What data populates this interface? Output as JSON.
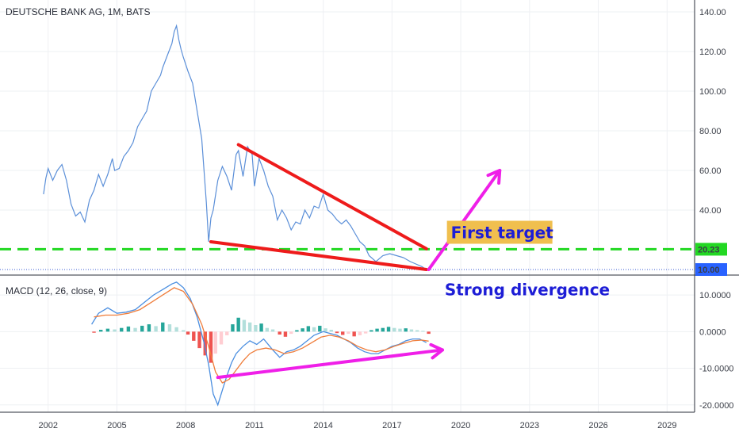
{
  "chart_data": [
    {
      "type": "line",
      "title": "DEUTSCHE BANK AG, 1M, BATS",
      "xlabel": "",
      "ylabel": "",
      "x_ticks": [
        "2002",
        "2005",
        "2008",
        "2011",
        "2014",
        "2017",
        "2020",
        "2023",
        "2026",
        "2029"
      ],
      "y_ticks": [
        "140.00",
        "120.00",
        "100.00",
        "80.00",
        "60.00",
        "40.00"
      ],
      "ylim": [
        8,
        146
      ],
      "xlim": [
        1999.9,
        2030.2
      ],
      "grid": true,
      "series": [
        {
          "color": "#5b8fd8",
          "points": [
            [
              2001.8,
              48
            ],
            [
              2001.9,
              56
            ],
            [
              2002.0,
              61
            ],
            [
              2002.2,
              55
            ],
            [
              2002.4,
              60
            ],
            [
              2002.6,
              63
            ],
            [
              2002.8,
              55
            ],
            [
              2003.0,
              43
            ],
            [
              2003.2,
              37
            ],
            [
              2003.4,
              39
            ],
            [
              2003.6,
              34
            ],
            [
              2003.8,
              45
            ],
            [
              2004.0,
              50
            ],
            [
              2004.2,
              58
            ],
            [
              2004.4,
              52
            ],
            [
              2004.6,
              58
            ],
            [
              2004.8,
              66
            ],
            [
              2004.9,
              60
            ],
            [
              2005.1,
              61
            ],
            [
              2005.3,
              67
            ],
            [
              2005.5,
              70
            ],
            [
              2005.7,
              74
            ],
            [
              2005.9,
              82
            ],
            [
              2006.1,
              86
            ],
            [
              2006.3,
              90
            ],
            [
              2006.5,
              100
            ],
            [
              2006.7,
              104
            ],
            [
              2006.9,
              108
            ],
            [
              2007.0,
              112
            ],
            [
              2007.2,
              118
            ],
            [
              2007.4,
              124
            ],
            [
              2007.5,
              130
            ],
            [
              2007.6,
              133
            ],
            [
              2007.7,
              126
            ],
            [
              2007.8,
              121
            ],
            [
              2007.9,
              117
            ],
            [
              2008.1,
              110
            ],
            [
              2008.3,
              104
            ],
            [
              2008.5,
              90
            ],
            [
              2008.7,
              76
            ],
            [
              2008.9,
              44
            ],
            [
              2009.0,
              24
            ],
            [
              2009.1,
              36
            ],
            [
              2009.2,
              40
            ],
            [
              2009.4,
              55
            ],
            [
              2009.6,
              62
            ],
            [
              2009.8,
              57
            ],
            [
              2010.0,
              50
            ],
            [
              2010.2,
              68
            ],
            [
              2010.3,
              70
            ],
            [
              2010.5,
              57
            ],
            [
              2010.7,
              72
            ],
            [
              2010.9,
              68
            ],
            [
              2011.0,
              52
            ],
            [
              2011.2,
              66
            ],
            [
              2011.4,
              60
            ],
            [
              2011.6,
              52
            ],
            [
              2011.8,
              47
            ],
            [
              2012.0,
              35
            ],
            [
              2012.2,
              40
            ],
            [
              2012.4,
              36
            ],
            [
              2012.6,
              30
            ],
            [
              2012.8,
              34
            ],
            [
              2013.0,
              33
            ],
            [
              2013.2,
              40
            ],
            [
              2013.4,
              36
            ],
            [
              2013.6,
              42
            ],
            [
              2013.8,
              41
            ],
            [
              2014.0,
              48
            ],
            [
              2014.2,
              40
            ],
            [
              2014.4,
              38
            ],
            [
              2014.6,
              35
            ],
            [
              2014.8,
              33
            ],
            [
              2015.0,
              35
            ],
            [
              2015.2,
              32
            ],
            [
              2015.4,
              28
            ],
            [
              2015.6,
              24
            ],
            [
              2015.8,
              22
            ],
            [
              2016.0,
              17
            ],
            [
              2016.3,
              14
            ],
            [
              2016.6,
              17
            ],
            [
              2016.9,
              18
            ],
            [
              2017.2,
              17
            ],
            [
              2017.5,
              16
            ],
            [
              2017.8,
              14
            ],
            [
              2018.0,
              13
            ],
            [
              2018.3,
              11.5
            ],
            [
              2018.5,
              10
            ]
          ]
        }
      ],
      "price_labels": [
        {
          "value": 20.23,
          "text": "20.23",
          "bg": "#23d823",
          "fg": "#0b3b0b"
        },
        {
          "value": 10.0,
          "text": "10.00",
          "bg": "#2962ff",
          "fg": "#ffffff"
        }
      ],
      "horizontal_lines": [
        {
          "value": 20.23,
          "color": "#23d823",
          "style": "dashed"
        },
        {
          "value": 10.0,
          "color": "#3a5bd6",
          "style": "dotted"
        }
      ],
      "drawings": {
        "wedge": {
          "color": "#ee1b1b",
          "upper": [
            [
              2010.3,
              73
            ],
            [
              2018.5,
              20.5
            ]
          ],
          "lower": [
            [
              2009.1,
              24
            ],
            [
              2018.5,
              10
            ]
          ]
        },
        "target_arrow": {
          "color": "#ef1fe8",
          "from": [
            2018.6,
            10
          ],
          "to": [
            2021.7,
            60
          ]
        }
      },
      "annotations": [
        {
          "text": "First target",
          "bg": "#f0bf4e",
          "color": "#1d1dd6",
          "x": 2019.5,
          "y": 25
        },
        {
          "text": "Strong divergence",
          "color": "#1d1dd6",
          "x": 2019.3,
          "y": -3
        }
      ]
    },
    {
      "type": "line",
      "title": "MACD (12, 26, close, 9)",
      "y_ticks": [
        "10.0000",
        "0.0000",
        "-10.0000",
        "-20.0000"
      ],
      "ylim": [
        -22,
        15
      ],
      "grid": true,
      "series": [
        {
          "color": "#4a8ee0",
          "points": [
            [
              2003.9,
              2
            ],
            [
              2004.2,
              5
            ],
            [
              2004.6,
              6.5
            ],
            [
              2005.0,
              5
            ],
            [
              2005.4,
              5.3
            ],
            [
              2005.8,
              6
            ],
            [
              2006.2,
              8
            ],
            [
              2006.6,
              10
            ],
            [
              2007.0,
              11.5
            ],
            [
              2007.4,
              13
            ],
            [
              2007.6,
              13.5
            ],
            [
              2007.9,
              12
            ],
            [
              2008.2,
              9
            ],
            [
              2008.5,
              4
            ],
            [
              2008.8,
              -3
            ],
            [
              2009.0,
              -9
            ],
            [
              2009.2,
              -17
            ],
            [
              2009.4,
              -20
            ],
            [
              2009.6,
              -16
            ],
            [
              2009.8,
              -12
            ],
            [
              2010.0,
              -8.5
            ],
            [
              2010.2,
              -6
            ],
            [
              2010.5,
              -4
            ],
            [
              2010.8,
              -2.5
            ],
            [
              2011.1,
              -3.5
            ],
            [
              2011.4,
              -2
            ],
            [
              2011.8,
              -5
            ],
            [
              2012.1,
              -7
            ],
            [
              2012.4,
              -5.5
            ],
            [
              2012.7,
              -5
            ],
            [
              2013.0,
              -4
            ],
            [
              2013.3,
              -2.5
            ],
            [
              2013.6,
              -1
            ],
            [
              2014.0,
              0
            ],
            [
              2014.3,
              -0.5
            ],
            [
              2014.6,
              -1
            ],
            [
              2014.9,
              -2
            ],
            [
              2015.2,
              -3
            ],
            [
              2015.5,
              -4.5
            ],
            [
              2015.8,
              -5.5
            ],
            [
              2016.1,
              -6
            ],
            [
              2016.4,
              -6
            ],
            [
              2016.7,
              -5
            ],
            [
              2017.0,
              -4
            ],
            [
              2017.3,
              -3.5
            ],
            [
              2017.6,
              -2.5
            ],
            [
              2017.9,
              -2
            ],
            [
              2018.2,
              -2
            ],
            [
              2018.5,
              -3
            ]
          ]
        },
        {
          "color": "#ef7d3b",
          "points": [
            [
              2004.0,
              4
            ],
            [
              2004.5,
              4.5
            ],
            [
              2005.0,
              4.5
            ],
            [
              2005.5,
              5
            ],
            [
              2006.0,
              6
            ],
            [
              2006.5,
              8
            ],
            [
              2007.0,
              10
            ],
            [
              2007.5,
              12
            ],
            [
              2007.9,
              11
            ],
            [
              2008.3,
              7.5
            ],
            [
              2008.7,
              2
            ],
            [
              2009.0,
              -4
            ],
            [
              2009.3,
              -11
            ],
            [
              2009.6,
              -14
            ],
            [
              2009.9,
              -13
            ],
            [
              2010.2,
              -10.5
            ],
            [
              2010.5,
              -8
            ],
            [
              2010.8,
              -6
            ],
            [
              2011.1,
              -5
            ],
            [
              2011.5,
              -4.5
            ],
            [
              2011.9,
              -5
            ],
            [
              2012.3,
              -6
            ],
            [
              2012.7,
              -5.5
            ],
            [
              2013.1,
              -4.5
            ],
            [
              2013.5,
              -3
            ],
            [
              2013.9,
              -1.5
            ],
            [
              2014.3,
              -1
            ],
            [
              2014.7,
              -1.5
            ],
            [
              2015.1,
              -2.5
            ],
            [
              2015.5,
              -4
            ],
            [
              2015.9,
              -5
            ],
            [
              2016.3,
              -5.5
            ],
            [
              2016.7,
              -5
            ],
            [
              2017.1,
              -4
            ],
            [
              2017.5,
              -3.2
            ],
            [
              2017.9,
              -2.5
            ],
            [
              2018.3,
              -2.3
            ],
            [
              2018.6,
              -2.6
            ]
          ]
        }
      ],
      "histogram": [
        [
          2004.0,
          -0.3
        ],
        [
          2004.3,
          0.5
        ],
        [
          2004.6,
          0.8
        ],
        [
          2004.9,
          0.6
        ],
        [
          2005.2,
          1.0
        ],
        [
          2005.5,
          1.4
        ],
        [
          2005.8,
          1.0
        ],
        [
          2006.1,
          1.6
        ],
        [
          2006.4,
          2.0
        ],
        [
          2006.7,
          1.5
        ],
        [
          2007.0,
          2.5
        ],
        [
          2007.3,
          2.0
        ],
        [
          2007.6,
          1.2
        ],
        [
          2007.9,
          0.4
        ],
        [
          2008.1,
          -0.8
        ],
        [
          2008.35,
          -2.5
        ],
        [
          2008.6,
          -4.5
        ],
        [
          2008.85,
          -6.5
        ],
        [
          2009.1,
          -8.5
        ],
        [
          2009.3,
          -6
        ],
        [
          2009.55,
          -3.5
        ],
        [
          2009.8,
          -1.0
        ],
        [
          2010.05,
          2.0
        ],
        [
          2010.3,
          3.8
        ],
        [
          2010.55,
          3.2
        ],
        [
          2010.8,
          2.5
        ],
        [
          2011.05,
          1.8
        ],
        [
          2011.3,
          2.2
        ],
        [
          2011.55,
          1.0
        ],
        [
          2011.8,
          0.6
        ],
        [
          2012.1,
          -0.8
        ],
        [
          2012.35,
          -1.4
        ],
        [
          2012.6,
          -0.6
        ],
        [
          2012.85,
          0.4
        ],
        [
          2013.1,
          0.9
        ],
        [
          2013.35,
          1.5
        ],
        [
          2013.6,
          1.2
        ],
        [
          2013.85,
          1.6
        ],
        [
          2014.1,
          0.9
        ],
        [
          2014.35,
          0.5
        ],
        [
          2014.6,
          -0.4
        ],
        [
          2014.85,
          -0.9
        ],
        [
          2015.1,
          -0.6
        ],
        [
          2015.35,
          -1.3
        ],
        [
          2015.6,
          -1.0
        ],
        [
          2015.85,
          -0.5
        ],
        [
          2016.1,
          0.4
        ],
        [
          2016.35,
          0.8
        ],
        [
          2016.6,
          1.0
        ],
        [
          2016.85,
          1.3
        ],
        [
          2017.1,
          1.0
        ],
        [
          2017.35,
          0.8
        ],
        [
          2017.6,
          0.9
        ],
        [
          2017.85,
          0.6
        ],
        [
          2018.1,
          0.4
        ],
        [
          2018.35,
          0.2
        ],
        [
          2018.6,
          -0.6
        ]
      ],
      "drawings": {
        "divergence_arrow": {
          "color": "#ef1fe8",
          "from": [
            2009.4,
            -12.5
          ],
          "to": [
            2019.2,
            -5
          ]
        }
      }
    }
  ],
  "x_axis_labels": [
    "2002",
    "2005",
    "2008",
    "2011",
    "2014",
    "2017",
    "2020",
    "2023",
    "2026",
    "2029"
  ]
}
